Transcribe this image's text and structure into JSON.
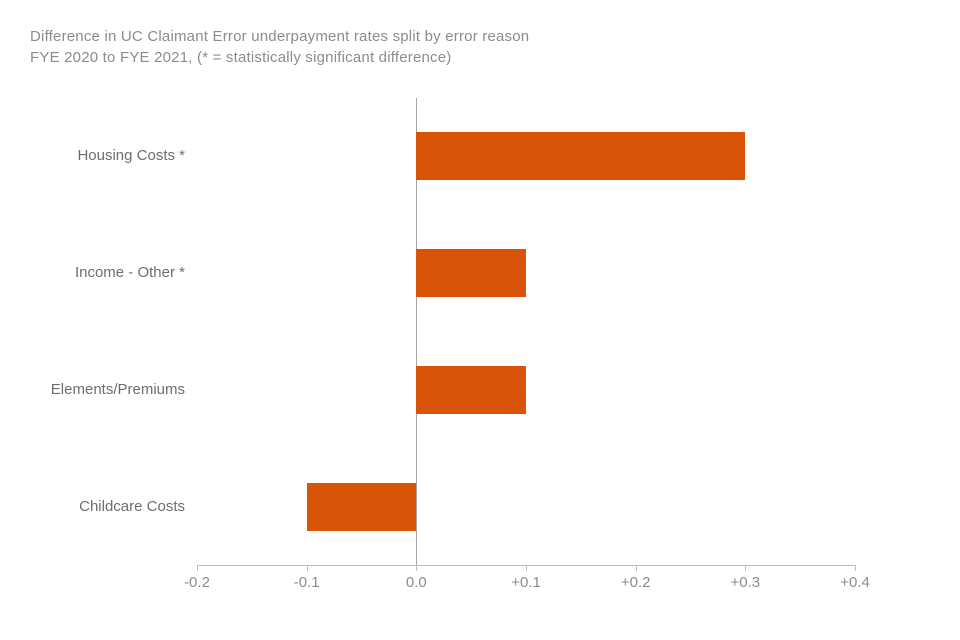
{
  "title": {
    "line1": "Difference in UC Claimant Error underpayment rates split by error reason",
    "line2": "FYE 2020 to FYE 2021, (* = statistically significant difference)"
  },
  "chart_data": {
    "type": "bar",
    "orientation": "horizontal",
    "title": "Difference in UC Claimant Error underpayment rates split by error reason FYE 2020 to FYE 2021, (* = statistically significant difference)",
    "categories": [
      "Housing Costs *",
      "Income - Other *",
      "Elements/Premiums",
      "Childcare Costs"
    ],
    "values": [
      0.3,
      0.1,
      0.1,
      -0.1
    ],
    "xlabel": "",
    "ylabel": "",
    "xlim": [
      -0.2,
      0.4
    ],
    "xticks": [
      {
        "value": -0.2,
        "label": "-0.2"
      },
      {
        "value": -0.1,
        "label": "-0.1"
      },
      {
        "value": 0.0,
        "label": "0.0"
      },
      {
        "value": 0.1,
        "label": "+0.1"
      },
      {
        "value": 0.2,
        "label": "+0.2"
      },
      {
        "value": 0.3,
        "label": "+0.3"
      },
      {
        "value": 0.4,
        "label": "+0.4"
      }
    ],
    "grid": "zero-line-only",
    "legend_position": "none"
  },
  "colors": {
    "bar": "#d85408",
    "title_text": "#8c8c8c",
    "category_text": "#6e6e6e",
    "tick_text": "#8c8c8c",
    "axis_line": "#bfbfbf",
    "zero_line": "#a6a6a6",
    "background": "#ffffff"
  }
}
